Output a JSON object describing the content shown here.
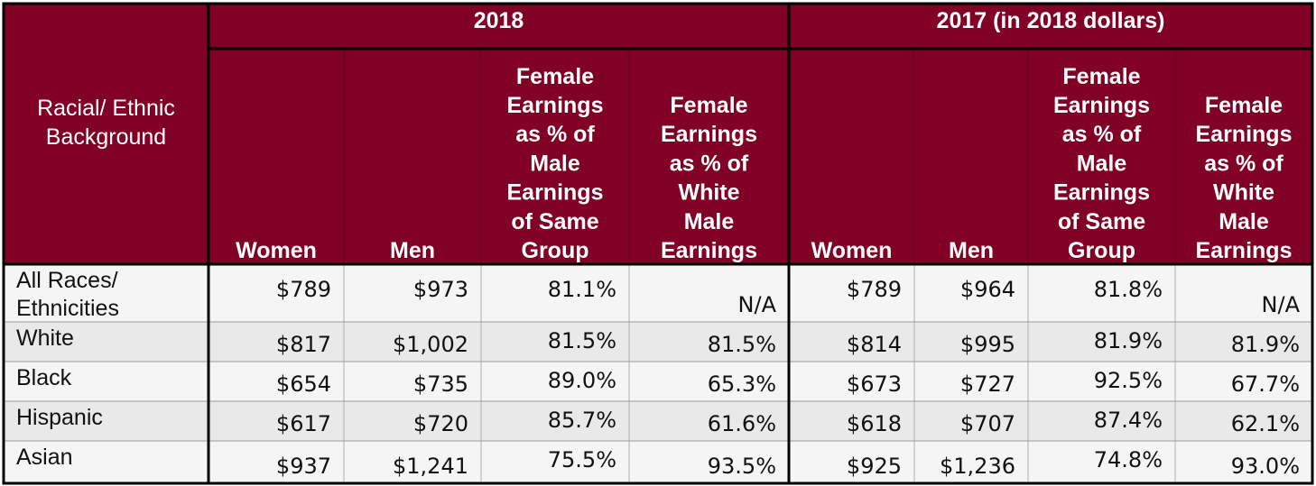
{
  "colors": {
    "header_bg": "#800026",
    "row_light": "#f5f5f5",
    "row_dark": "#e9e9e9",
    "border": "#000000",
    "header_text": "#ffffff"
  },
  "chart_data": {
    "type": "table",
    "row_header": [
      "Racial/ Ethnic",
      "Background"
    ],
    "groups": [
      {
        "label": "2018"
      },
      {
        "label": "2017 (in 2018 dollars)"
      }
    ],
    "columns": [
      {
        "lines": [
          "Women"
        ]
      },
      {
        "lines": [
          "Men"
        ]
      },
      {
        "lines": [
          "Female",
          "Earnings",
          "as % of",
          "Male",
          "Earnings",
          "of Same",
          "Group"
        ]
      },
      {
        "lines": [
          "Female",
          "Earnings",
          "as % of",
          "White",
          "Male",
          "Earnings"
        ]
      }
    ],
    "rows": [
      {
        "label": [
          "All Races/",
          "Ethnicities"
        ],
        "values": [
          "$789",
          "$973",
          "81.1%",
          "N/A",
          "$789",
          "$964",
          "81.8%",
          "N/A"
        ]
      },
      {
        "label": [
          "White"
        ],
        "values": [
          "$817",
          "$1,002",
          "81.5%",
          "81.5%",
          "$814",
          "$995",
          "81.9%",
          "81.9%"
        ]
      },
      {
        "label": [
          "Black"
        ],
        "values": [
          "$654",
          "$735",
          "89.0%",
          "65.3%",
          "$673",
          "$727",
          "92.5%",
          "67.7%"
        ]
      },
      {
        "label": [
          "Hispanic"
        ],
        "values": [
          "$617",
          "$720",
          "85.7%",
          "61.6%",
          "$618",
          "$707",
          "87.4%",
          "62.1%"
        ]
      },
      {
        "label": [
          "Asian"
        ],
        "values": [
          "$937",
          "$1,241",
          "75.5%",
          "93.5%",
          "$925",
          "$1,236",
          "74.8%",
          "93.0%"
        ]
      }
    ]
  }
}
